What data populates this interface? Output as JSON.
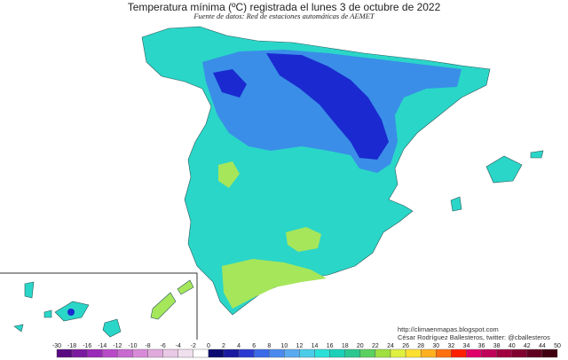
{
  "header": {
    "title": "Temperatura mínima (ºC) registrada el lunes 3 de octubre de 2022",
    "source": "Fuente de datos: Red de estaciones automáticas de AEMET"
  },
  "credits": {
    "url": "http://climaenmapas.blogspot.com",
    "author": "César Rodríguez Ballesteros, twitter: @cballesteros"
  },
  "legend": {
    "ticks": [
      "-30",
      "-18",
      "-16",
      "-14",
      "-12",
      "-10",
      "-8",
      "-6",
      "-4",
      "-2",
      "0",
      "2",
      "4",
      "6",
      "8",
      "10",
      "12",
      "14",
      "16",
      "18",
      "20",
      "22",
      "24",
      "26",
      "28",
      "30",
      "32",
      "34",
      "36",
      "38",
      "40",
      "42",
      "44",
      "50"
    ],
    "colors": [
      "#5a0a80",
      "#7a1a9e",
      "#9a2ab8",
      "#b84ac8",
      "#c86ad0",
      "#d88ad8",
      "#e0aadc",
      "#e8c8e4",
      "#f0e0ee",
      "#ffffff",
      "#0a0a70",
      "#1a1aa0",
      "#2a3ad0",
      "#3a6ae8",
      "#4a8aee",
      "#5aaaf0",
      "#4acce8",
      "#2ae0d8",
      "#1ad0b8",
      "#2ac890",
      "#5ad060",
      "#a0e040",
      "#e0f040",
      "#ffe030",
      "#ffb020",
      "#ff7010",
      "#ff2000",
      "#e0006a",
      "#c0005a",
      "#a00040",
      "#800030",
      "#600020",
      "#400010"
    ]
  },
  "map_colors": {
    "sea": "#ffffff",
    "mild": "#2ad6c8",
    "cool": "#3a8ee8",
    "cold": "#1a2ad0",
    "warm": "#a6e65a"
  }
}
